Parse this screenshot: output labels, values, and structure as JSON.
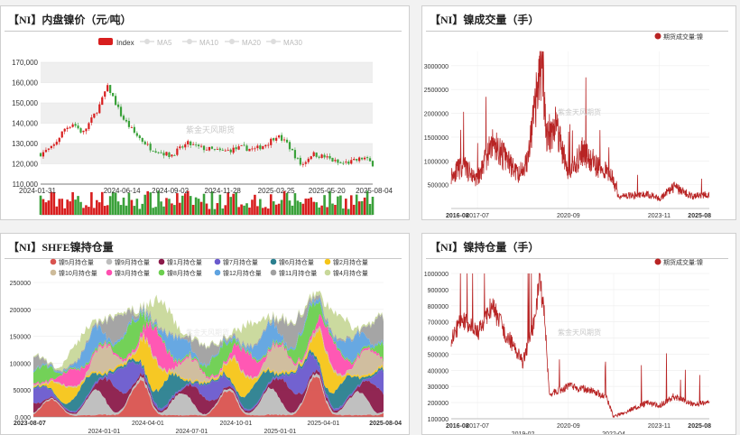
{
  "panels": {
    "price": {
      "title": "【NI】内盘镍价（元/吨）",
      "watermark": "紫金天风期货",
      "legend": [
        "Index",
        "MA5",
        "MA10",
        "MA20",
        "MA30"
      ]
    },
    "volume": {
      "title": "【NI】镍成交量（手）",
      "watermark": "紫金天风期货",
      "legend": [
        "期货成交量:镍"
      ]
    },
    "oi_stack": {
      "title": "【NI】SHFE镍持仓量",
      "watermark": "紫金天风期货",
      "legend": [
        "镍5月持仓量",
        "镍9月持仓量",
        "镍1月持仓量",
        "镍7月持仓量",
        "镍6月持仓量",
        "镍2月持仓量",
        "镍10月持仓量",
        "镍3月持仓量",
        "镍8月持仓量",
        "镍12月持仓量",
        "镍11月持仓量",
        "镍4月持仓量"
      ]
    },
    "oi": {
      "title": "【NI】镍持仓量（手）",
      "watermark": "紫金天风期货",
      "legend": [
        "期货成交量:镍"
      ]
    }
  },
  "colors": {
    "up": "#d81e1e",
    "down": "#3aa13a",
    "line_red": "#b82424",
    "grid": "#e6e6e6",
    "stack": [
      "#d9534f",
      "#bdbdbd",
      "#8b1a4a",
      "#6a5acd",
      "#2a7f8f",
      "#f5c518",
      "#cdbb9a",
      "#ff4fb0",
      "#6ccf4f",
      "#5fa3e0",
      "#a0a0a0",
      "#c8d89a"
    ]
  },
  "chart_data": [
    {
      "type": "candlestick",
      "title": "【NI】内盘镍价（元/吨）",
      "x_ticks": [
        "2024-01-31",
        "2024-06-14",
        "2024-09-02",
        "2024-11-28",
        "2025-02-25",
        "2025-05-20",
        "2025-08-04"
      ],
      "y_ticks": [
        "110,000",
        "120,000",
        "130,000",
        "140,000",
        "150,000",
        "160,000",
        "170,000"
      ],
      "ylim": [
        110000,
        170000
      ],
      "close_keypoints": [
        {
          "x": "2024-01-31",
          "y": 125000
        },
        {
          "x": "2024-02-20",
          "y": 128000
        },
        {
          "x": "2024-03-10",
          "y": 137000
        },
        {
          "x": "2024-03-25",
          "y": 140000
        },
        {
          "x": "2024-04-10",
          "y": 135000
        },
        {
          "x": "2024-04-25",
          "y": 142000
        },
        {
          "x": "2024-05-10",
          "y": 150000
        },
        {
          "x": "2024-05-20",
          "y": 158000
        },
        {
          "x": "2024-05-25",
          "y": 156000
        },
        {
          "x": "2024-06-14",
          "y": 143000
        },
        {
          "x": "2024-07-05",
          "y": 135000
        },
        {
          "x": "2024-07-30",
          "y": 128000
        },
        {
          "x": "2024-09-02",
          "y": 124000
        },
        {
          "x": "2024-10-01",
          "y": 130000
        },
        {
          "x": "2024-10-20",
          "y": 128000
        },
        {
          "x": "2024-11-28",
          "y": 126000
        },
        {
          "x": "2024-12-30",
          "y": 128000
        },
        {
          "x": "2025-01-20",
          "y": 127000
        },
        {
          "x": "2025-02-10",
          "y": 130000
        },
        {
          "x": "2025-02-25",
          "y": 134000
        },
        {
          "x": "2025-03-15",
          "y": 130000
        },
        {
          "x": "2025-04-08",
          "y": 119000
        },
        {
          "x": "2025-04-25",
          "y": 125000
        },
        {
          "x": "2025-05-20",
          "y": 123000
        },
        {
          "x": "2025-06-10",
          "y": 120000
        },
        {
          "x": "2025-07-01",
          "y": 121000
        },
        {
          "x": "2025-07-20",
          "y": 123000
        },
        {
          "x": "2025-08-04",
          "y": 120000
        }
      ]
    },
    {
      "type": "line",
      "title": "【NI】镍成交量（手）",
      "series_name": "期货成交量:镍",
      "x_ticks_bold": [
        "2016-08",
        "2025-08"
      ],
      "x_ticks": [
        "2017-07",
        "2020-09",
        "2023-11"
      ],
      "y_ticks": [
        "500000",
        "1000000",
        "1500000",
        "2000000",
        "2500000",
        "3000000"
      ],
      "ylim": [
        0,
        3300000
      ],
      "keypoints": [
        {
          "x": "2016-08",
          "y": 700000
        },
        {
          "x": "2017-01",
          "y": 900000
        },
        {
          "x": "2017-07",
          "y": 600000
        },
        {
          "x": "2018-01",
          "y": 1400000
        },
        {
          "x": "2018-06",
          "y": 1100000
        },
        {
          "x": "2018-12",
          "y": 700000
        },
        {
          "x": "2019-04",
          "y": 1000000
        },
        {
          "x": "2019-08",
          "y": 2400000
        },
        {
          "x": "2019-10",
          "y": 3200000
        },
        {
          "x": "2019-12",
          "y": 1500000
        },
        {
          "x": "2020-04",
          "y": 1800000
        },
        {
          "x": "2020-09",
          "y": 700000
        },
        {
          "x": "2021-03",
          "y": 1200000
        },
        {
          "x": "2021-09",
          "y": 900000
        },
        {
          "x": "2022-03",
          "y": 700000
        },
        {
          "x": "2022-06",
          "y": 250000
        },
        {
          "x": "2023-06",
          "y": 300000
        },
        {
          "x": "2023-11",
          "y": 200000
        },
        {
          "x": "2024-05",
          "y": 450000
        },
        {
          "x": "2025-01",
          "y": 250000
        },
        {
          "x": "2025-08",
          "y": 300000
        }
      ]
    },
    {
      "type": "area",
      "stacked": true,
      "title": "【NI】SHFE镍持仓量",
      "x_ticks_bold": [
        "2023-08-07",
        "2025-08-04"
      ],
      "x_ticks": [
        "2024-01-01",
        "2024-04-01",
        "2024-07-01",
        "2024-10-01",
        "2025-01-01",
        "2025-04-01"
      ],
      "y_ticks": [
        "0.000",
        "50000",
        "100000",
        "150000",
        "200000",
        "250000"
      ],
      "ylim": [
        0,
        250000
      ],
      "totals_keypoints": [
        {
          "x": "2023-08-07",
          "y": 120000
        },
        {
          "x": "2023-10-01",
          "y": 90000
        },
        {
          "x": "2023-12-01",
          "y": 170000
        },
        {
          "x": "2024-01-15",
          "y": 190000
        },
        {
          "x": "2024-03-15",
          "y": 200000
        },
        {
          "x": "2024-05-01",
          "y": 220000
        },
        {
          "x": "2024-06-01",
          "y": 170000
        },
        {
          "x": "2024-08-01",
          "y": 130000
        },
        {
          "x": "2024-10-01",
          "y": 160000
        },
        {
          "x": "2024-12-01",
          "y": 190000
        },
        {
          "x": "2025-02-01",
          "y": 180000
        },
        {
          "x": "2025-03-15",
          "y": 230000
        },
        {
          "x": "2025-05-01",
          "y": 190000
        },
        {
          "x": "2025-06-15",
          "y": 160000
        },
        {
          "x": "2025-08-04",
          "y": 190000
        }
      ]
    },
    {
      "type": "line",
      "title": "【NI】镍持仓量（手）",
      "series_name": "期货成交量:镍",
      "x_ticks_bold": [
        "2016-08",
        "2025-08"
      ],
      "x_ticks": [
        "2017-07",
        "2019-02",
        "2020-09",
        "2022-04",
        "2023-11"
      ],
      "y_ticks": [
        "100000",
        "200000",
        "300000",
        "400000",
        "500000",
        "600000",
        "700000",
        "800000",
        "900000",
        "1000000"
      ],
      "ylim": [
        100000,
        1000000
      ],
      "keypoints": [
        {
          "x": "2016-08",
          "y": 600000
        },
        {
          "x": "2017-01",
          "y": 720000
        },
        {
          "x": "2017-07",
          "y": 620000
        },
        {
          "x": "2018-01",
          "y": 800000
        },
        {
          "x": "2018-06",
          "y": 650000
        },
        {
          "x": "2018-12",
          "y": 500000
        },
        {
          "x": "2019-02",
          "y": 450000
        },
        {
          "x": "2019-07",
          "y": 700000
        },
        {
          "x": "2019-09",
          "y": 980000
        },
        {
          "x": "2019-11",
          "y": 750000
        },
        {
          "x": "2020-01",
          "y": 250000
        },
        {
          "x": "2020-09",
          "y": 300000
        },
        {
          "x": "2021-06",
          "y": 280000
        },
        {
          "x": "2022-01",
          "y": 230000
        },
        {
          "x": "2022-04",
          "y": 110000
        },
        {
          "x": "2022-10",
          "y": 150000
        },
        {
          "x": "2023-06",
          "y": 200000
        },
        {
          "x": "2023-11",
          "y": 180000
        },
        {
          "x": "2024-05",
          "y": 240000
        },
        {
          "x": "2025-01",
          "y": 190000
        },
        {
          "x": "2025-08",
          "y": 200000
        }
      ]
    }
  ]
}
